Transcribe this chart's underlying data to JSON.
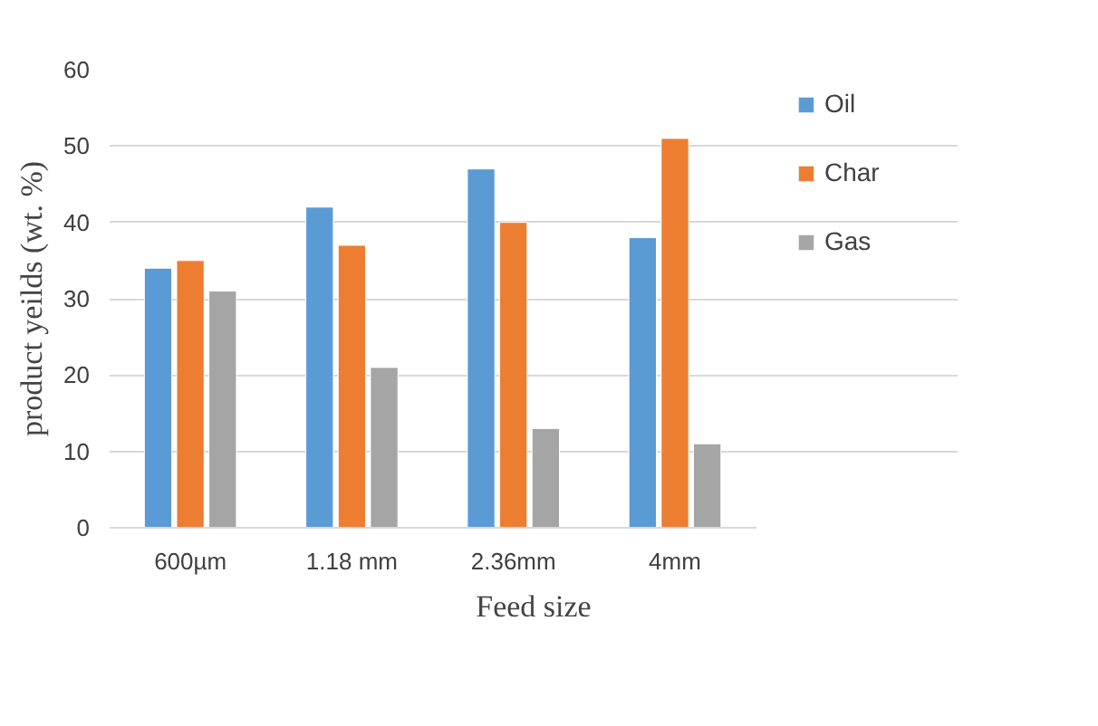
{
  "chart_data": {
    "type": "bar",
    "xlabel": "Feed size",
    "ylabel": "product yeilds (wt. %)",
    "categories": [
      "600µm",
      "1.18 mm",
      "2.36mm",
      "4mm"
    ],
    "series": [
      {
        "name": "Oil",
        "color": "#5b9bd5",
        "values": [
          34,
          42,
          47,
          38
        ]
      },
      {
        "name": "Char",
        "color": "#ed7d31",
        "values": [
          35,
          37,
          40,
          51
        ]
      },
      {
        "name": "Gas",
        "color": "#a5a5a5",
        "values": [
          31,
          21,
          13,
          11
        ]
      }
    ],
    "ylim": [
      0,
      60
    ],
    "yticks": [
      0,
      10,
      20,
      30,
      40,
      50,
      60
    ],
    "grid": "y",
    "legend": "right"
  }
}
